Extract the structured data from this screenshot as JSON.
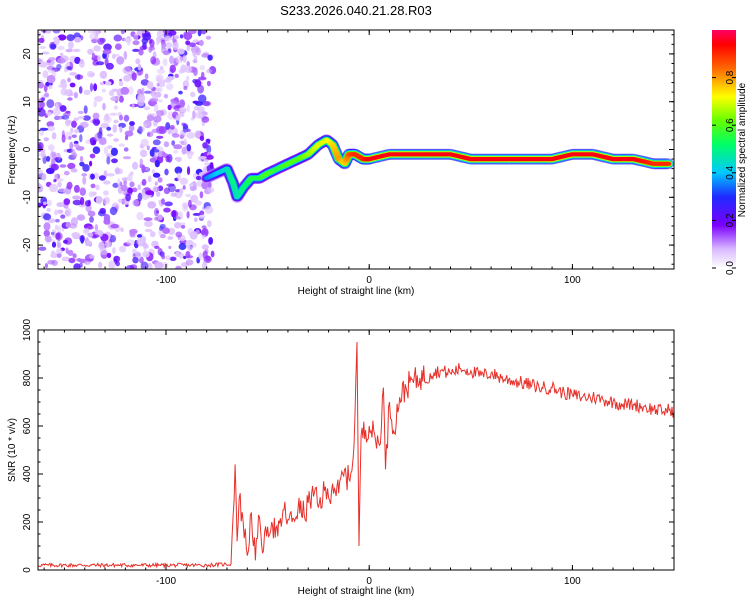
{
  "title": "S233.2026.040.21.28.R03",
  "chart_data": [
    {
      "type": "heatmap",
      "panel": "spectrogram",
      "xlabel": "Height of straight line (km)",
      "ylabel": "Frequency (Hz)",
      "xlim": [
        -163,
        150
      ],
      "ylim": [
        -25,
        25
      ],
      "xticks": [
        -100,
        0,
        100
      ],
      "yticks": [
        -20,
        -10,
        0,
        10,
        20
      ],
      "noise_region": {
        "x": [
          -163,
          -77
        ],
        "description": "random low-amplitude speckle"
      },
      "signal_track": {
        "x": [
          -80,
          -75,
          -70,
          -67,
          -65,
          -62,
          -58,
          -54,
          -50,
          -45,
          -40,
          -35,
          -30,
          -25,
          -21,
          -18,
          -15,
          -12,
          -10,
          -7,
          -3,
          0,
          10,
          20,
          30,
          40,
          50,
          60,
          70,
          80,
          90,
          100,
          110,
          120,
          130,
          140,
          148
        ],
        "y": [
          -6,
          -5,
          -4,
          -7,
          -10,
          -8,
          -6,
          -6,
          -5,
          -4,
          -3,
          -2,
          -1,
          1,
          2,
          1,
          -2,
          -3,
          -1,
          -1,
          -2,
          -2,
          -1,
          -1,
          -1,
          -1,
          -2,
          -2,
          -2,
          -2,
          -2,
          -1,
          -1,
          -2,
          -2,
          -3,
          -3
        ],
        "amplitude": [
          0.35,
          0.4,
          0.45,
          0.5,
          0.45,
          0.5,
          0.55,
          0.55,
          0.6,
          0.55,
          0.6,
          0.6,
          0.65,
          0.7,
          0.7,
          0.75,
          0.8,
          0.75,
          0.85,
          0.9,
          0.9,
          0.95,
          0.95,
          0.95,
          0.95,
          0.95,
          0.95,
          0.95,
          0.95,
          0.95,
          0.95,
          0.95,
          0.95,
          0.95,
          0.95,
          0.9,
          0.9
        ]
      },
      "colorbar": {
        "label": "Normalized spectral amplitude",
        "range": [
          0,
          1
        ],
        "ticks": [
          "0.0",
          "0.2",
          "0.4",
          "0.6",
          "0.8"
        ]
      }
    },
    {
      "type": "line",
      "panel": "snr",
      "xlabel": "Height of straight line (km)",
      "ylabel": "SNR (10 * v/v)",
      "xlim": [
        -163,
        150
      ],
      "ylim": [
        0,
        1000
      ],
      "xticks": [
        -100,
        0,
        100
      ],
      "yticks": [
        0,
        200,
        400,
        600,
        800,
        1000
      ],
      "color": "#e8302a",
      "series": [
        {
          "name": "SNR",
          "x": [
            -163,
            -140,
            -120,
            -100,
            -80,
            -68,
            -66,
            -65,
            -64,
            -62,
            -60,
            -58,
            -56,
            -54,
            -52,
            -50,
            -48,
            -45,
            -42,
            -40,
            -38,
            -35,
            -32,
            -30,
            -27,
            -25,
            -22,
            -20,
            -18,
            -15,
            -13,
            -10,
            -8,
            -7,
            -6,
            -5,
            -4,
            0,
            5,
            7,
            8,
            10,
            12,
            15,
            20,
            25,
            30,
            35,
            40,
            45,
            50,
            55,
            60,
            65,
            70,
            75,
            80,
            85,
            90,
            95,
            100,
            105,
            110,
            115,
            120,
            125,
            130,
            135,
            140,
            145,
            148,
            150
          ],
          "y": [
            20,
            20,
            20,
            20,
            20,
            25,
            440,
            120,
            300,
            200,
            60,
            240,
            40,
            220,
            80,
            180,
            200,
            140,
            250,
            210,
            200,
            260,
            230,
            280,
            320,
            260,
            330,
            300,
            360,
            320,
            400,
            380,
            460,
            650,
            950,
            100,
            560,
            600,
            520,
            760,
            420,
            700,
            580,
            720,
            780,
            800,
            820,
            830,
            820,
            840,
            830,
            810,
            820,
            800,
            790,
            780,
            770,
            760,
            760,
            740,
            730,
            720,
            720,
            710,
            700,
            690,
            690,
            680,
            670,
            660,
            670,
            660
          ]
        }
      ]
    }
  ]
}
